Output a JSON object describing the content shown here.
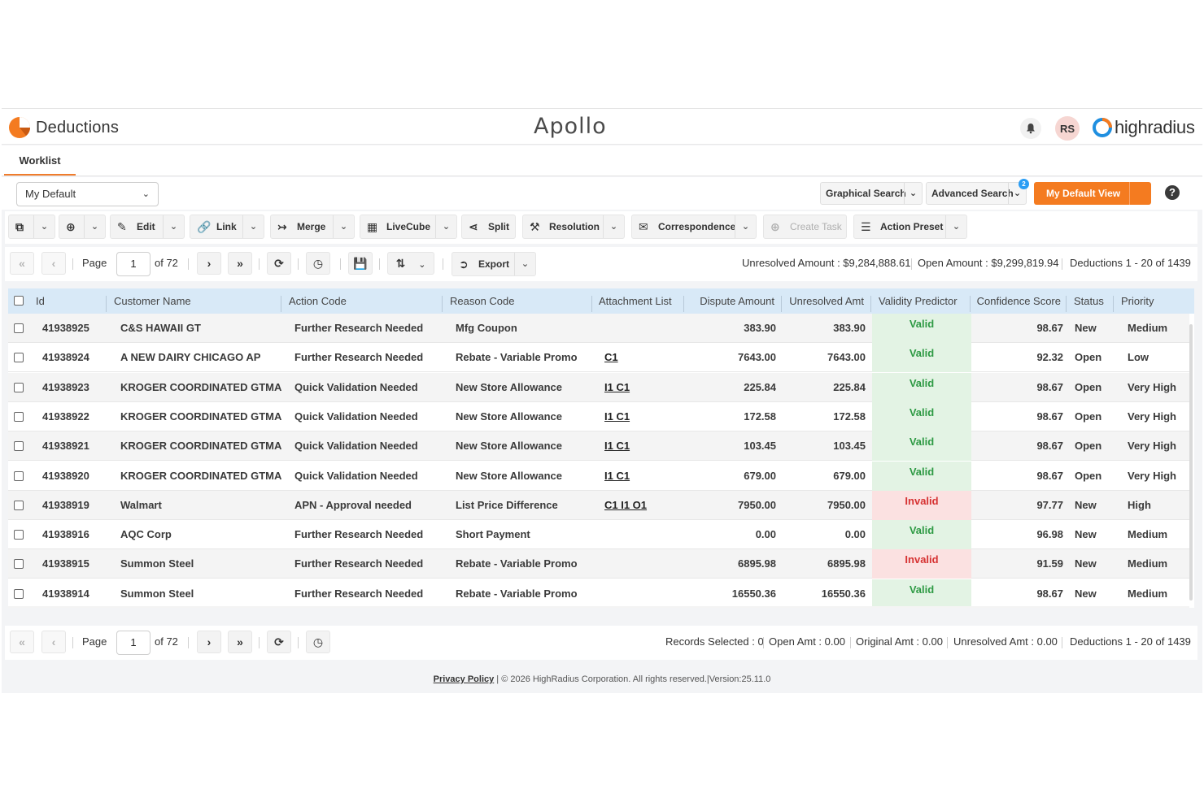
{
  "header": {
    "app_title": "Deductions",
    "brand": "Apollo",
    "avatar_initials": "RS",
    "company_logo_text": "highradius",
    "accent_color": "#f47b20"
  },
  "tabs": [
    {
      "label": "Worklist",
      "active": true
    }
  ],
  "view_bar": {
    "view_selector": "My Default",
    "graphical_search": "Graphical Search",
    "advanced_search": "Advanced Search",
    "advanced_search_badge": "2",
    "my_default_view": "My Default View",
    "help_icon": "question-circle-icon"
  },
  "toolbar": {
    "edit": "Edit",
    "link": "Link",
    "merge": "Merge",
    "livecube": "LiveCube",
    "split": "Split",
    "resolution": "Resolution",
    "correspondence": "Correspondence",
    "create_task": "Create Task",
    "action_preset": "Action Preset"
  },
  "pager_top": {
    "page_label": "Page",
    "page_value": "1",
    "of_pages": "of 72",
    "export": "Export",
    "unresolved_amount": "Unresolved Amount : $9,284,888.61",
    "open_amount": "Open Amount : $9,299,819.94",
    "deductions_range": "Deductions 1 - 20 of 1439"
  },
  "columns": [
    "Id",
    "Customer Name",
    "Action Code",
    "Reason Code",
    "Attachment List",
    "Dispute Amount",
    "Unresolved Amt",
    "Validity Predictor",
    "Confidence Score",
    "Status",
    "Priority"
  ],
  "rows": [
    {
      "id": "41938925",
      "customer": "C&S HAWAII GT",
      "action": "Further Research Needed",
      "reason": "Mfg Coupon",
      "attachments": "",
      "dispute": "383.90",
      "unresolved": "383.90",
      "validity": "Valid",
      "score": "98.67",
      "status": "New",
      "priority": "Medium"
    },
    {
      "id": "41938924",
      "customer": "A NEW DAIRY CHICAGO AP",
      "action": "Further Research Needed",
      "reason": "Rebate - Variable Promo",
      "attachments": "C1",
      "dispute": "7643.00",
      "unresolved": "7643.00",
      "validity": "Valid",
      "score": "92.32",
      "status": "Open",
      "priority": "Low"
    },
    {
      "id": "41938923",
      "customer": "KROGER COORDINATED GTMA",
      "action": "Quick Validation Needed",
      "reason": "New Store Allowance",
      "attachments": "I1 C1",
      "dispute": "225.84",
      "unresolved": "225.84",
      "validity": "Valid",
      "score": "98.67",
      "status": "Open",
      "priority": "Very High"
    },
    {
      "id": "41938922",
      "customer": "KROGER COORDINATED GTMA",
      "action": "Quick Validation Needed",
      "reason": "New Store Allowance",
      "attachments": "I1 C1",
      "dispute": "172.58",
      "unresolved": "172.58",
      "validity": "Valid",
      "score": "98.67",
      "status": "Open",
      "priority": "Very High"
    },
    {
      "id": "41938921",
      "customer": "KROGER COORDINATED GTMA",
      "action": "Quick Validation Needed",
      "reason": "New Store Allowance",
      "attachments": "I1 C1",
      "dispute": "103.45",
      "unresolved": "103.45",
      "validity": "Valid",
      "score": "98.67",
      "status": "Open",
      "priority": "Very High"
    },
    {
      "id": "41938920",
      "customer": "KROGER COORDINATED GTMA",
      "action": "Quick Validation Needed",
      "reason": "New Store Allowance",
      "attachments": "I1 C1",
      "dispute": "679.00",
      "unresolved": "679.00",
      "validity": "Valid",
      "score": "98.67",
      "status": "Open",
      "priority": "Very High"
    },
    {
      "id": "41938919",
      "customer": "Walmart",
      "action": "APN - Approval needed",
      "reason": "List Price Difference",
      "attachments": "C1 I1 O1",
      "dispute": "7950.00",
      "unresolved": "7950.00",
      "validity": "Invalid",
      "score": "97.77",
      "status": "New",
      "priority": "High"
    },
    {
      "id": "41938916",
      "customer": "AQC Corp",
      "action": "Further Research Needed",
      "reason": "Short Payment",
      "attachments": "",
      "dispute": "0.00",
      "unresolved": "0.00",
      "validity": "Valid",
      "score": "96.98",
      "status": "New",
      "priority": "Medium"
    },
    {
      "id": "41938915",
      "customer": "Summon Steel",
      "action": "Further Research Needed",
      "reason": "Rebate - Variable Promo",
      "attachments": "",
      "dispute": "6895.98",
      "unresolved": "6895.98",
      "validity": "Invalid",
      "score": "91.59",
      "status": "New",
      "priority": "Medium"
    },
    {
      "id": "41938914",
      "customer": "Summon Steel",
      "action": "Further Research Needed",
      "reason": "Rebate - Variable Promo",
      "attachments": "",
      "dispute": "16550.36",
      "unresolved": "16550.36",
      "validity": "Valid",
      "score": "98.67",
      "status": "New",
      "priority": "Medium"
    }
  ],
  "pager_bottom": {
    "page_label": "Page",
    "page_value": "1",
    "of_pages": "of 72",
    "records_selected": "Records Selected : 0",
    "open_amt": "Open Amt : 0.00",
    "original_amt": "Original Amt : 0.00",
    "unresolved_amt": "Unresolved Amt : 0.00",
    "deductions_range": "Deductions 1 - 20 of 1439"
  },
  "footer": {
    "privacy": "Privacy Policy",
    "copyright": " | © 2026 HighRadius Corporation. All rights reserved.|Version:25.11.0"
  }
}
